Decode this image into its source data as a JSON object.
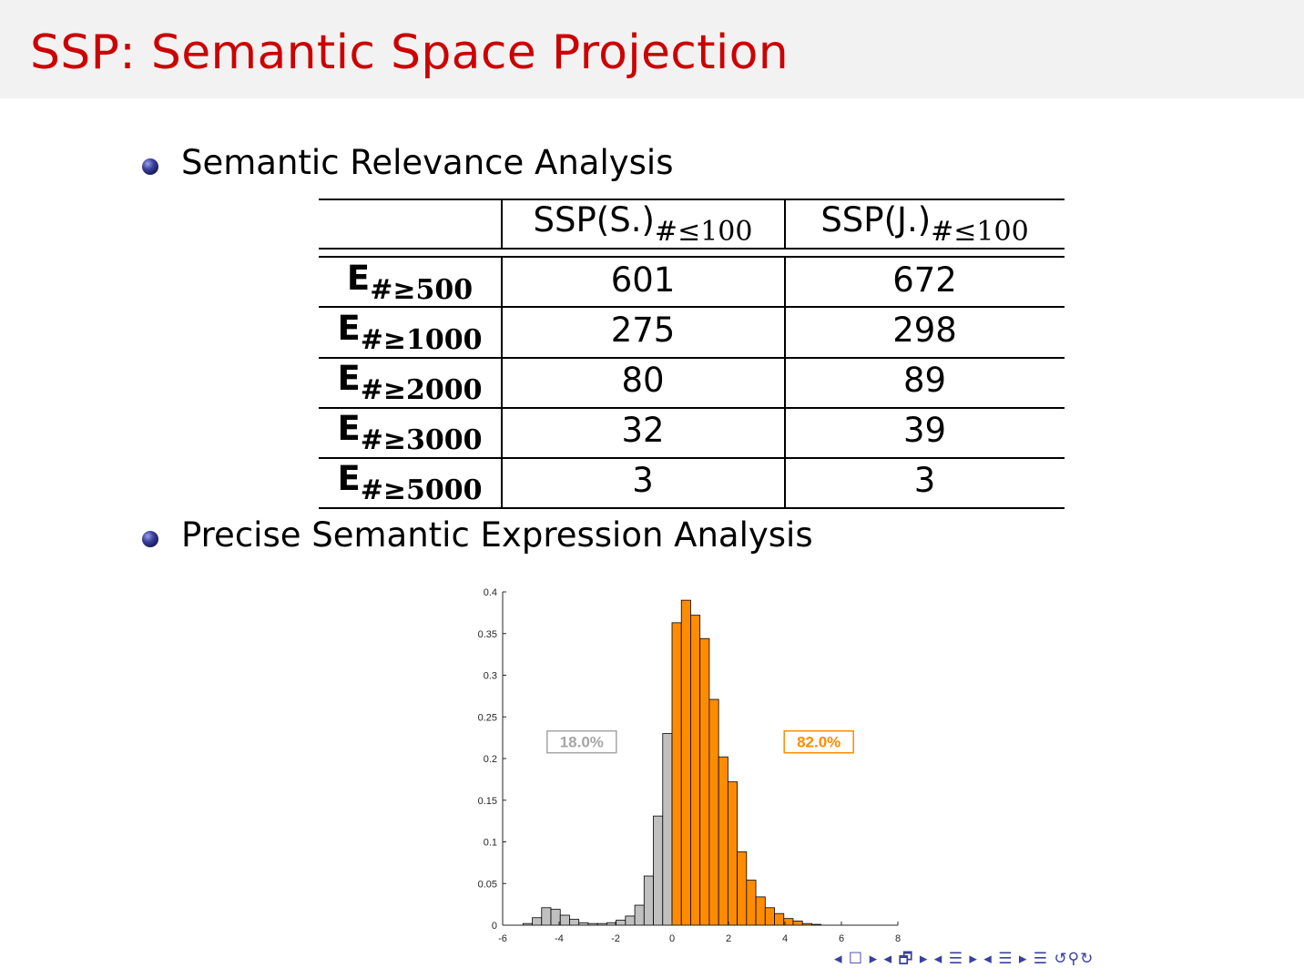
{
  "slide": {
    "title": "SSP: Semantic Space Projection"
  },
  "bullets": [
    {
      "text": "Semantic Relevance Analysis"
    },
    {
      "text": "Precise Semantic Expression Analysis"
    }
  ],
  "table": {
    "columns": [
      {
        "base": "SSP(S.)",
        "sub_sym": "#",
        "sub_rel": "≤",
        "sub_num": "100"
      },
      {
        "base": "SSP(J.)",
        "sub_sym": "#",
        "sub_rel": "≤",
        "sub_num": "100"
      }
    ],
    "rows": [
      {
        "base": "E",
        "sub_sym": "#",
        "sub_rel": "≥",
        "sub_num": "500",
        "values": [
          "601",
          "672"
        ]
      },
      {
        "base": "E",
        "sub_sym": "#",
        "sub_rel": "≥",
        "sub_num": "1000",
        "values": [
          "275",
          "298"
        ]
      },
      {
        "base": "E",
        "sub_sym": "#",
        "sub_rel": "≥",
        "sub_num": "2000",
        "values": [
          "80",
          "89"
        ]
      },
      {
        "base": "E",
        "sub_sym": "#",
        "sub_rel": "≥",
        "sub_num": "3000",
        "values": [
          "32",
          "39"
        ]
      },
      {
        "base": "E",
        "sub_sym": "#",
        "sub_rel": "≥",
        "sub_num": "5000",
        "values": [
          "3",
          "3"
        ]
      }
    ]
  },
  "chart_data": {
    "type": "bar",
    "title": "",
    "xlabel": "",
    "ylabel": "",
    "xlim": [
      -6,
      8
    ],
    "ylim": [
      0,
      0.4
    ],
    "x_ticks": [
      "-6",
      "-4",
      "-2",
      "0",
      "2",
      "4",
      "6",
      "8"
    ],
    "y_ticks": [
      "0",
      "0.05",
      "0.1",
      "0.15",
      "0.2",
      "0.25",
      "0.3",
      "0.35",
      "0.4"
    ],
    "bin_width": 0.33,
    "colors": {
      "negative": "#c0c0c0",
      "positive": "#ff8c00",
      "edge": "#000000"
    },
    "bins_left_edges": [
      -5.28,
      -4.95,
      -4.62,
      -4.29,
      -3.96,
      -3.63,
      -3.3,
      -2.97,
      -2.64,
      -2.31,
      -1.98,
      -1.65,
      -1.32,
      -0.99,
      -0.66,
      -0.33,
      0.0,
      0.33,
      0.66,
      0.99,
      1.32,
      1.65,
      1.98,
      2.31,
      2.64,
      2.97,
      3.3,
      3.63,
      3.96,
      4.29,
      4.62,
      4.95,
      5.28
    ],
    "values": [
      0.002,
      0.009,
      0.021,
      0.019,
      0.012,
      0.007,
      0.003,
      0.002,
      0.002,
      0.003,
      0.006,
      0.011,
      0.024,
      0.059,
      0.131,
      0.23,
      0.363,
      0.39,
      0.372,
      0.344,
      0.271,
      0.202,
      0.172,
      0.088,
      0.054,
      0.034,
      0.021,
      0.014,
      0.008,
      0.005,
      0.002,
      0.001,
      0.0
    ],
    "annotations": [
      {
        "text": "18.0%",
        "x": -3.2,
        "y": 0.22,
        "color": "#a6a6a6"
      },
      {
        "text": "82.0%",
        "x": 5.2,
        "y": 0.22,
        "color": "#ff8c00"
      }
    ]
  },
  "navigation": {
    "glyphs": "◂ ☐ ▸ ◂ 🗗 ▸ ◂ ☰ ▸ ◂ ☰ ▸   ☰   ↺⚲↻"
  }
}
